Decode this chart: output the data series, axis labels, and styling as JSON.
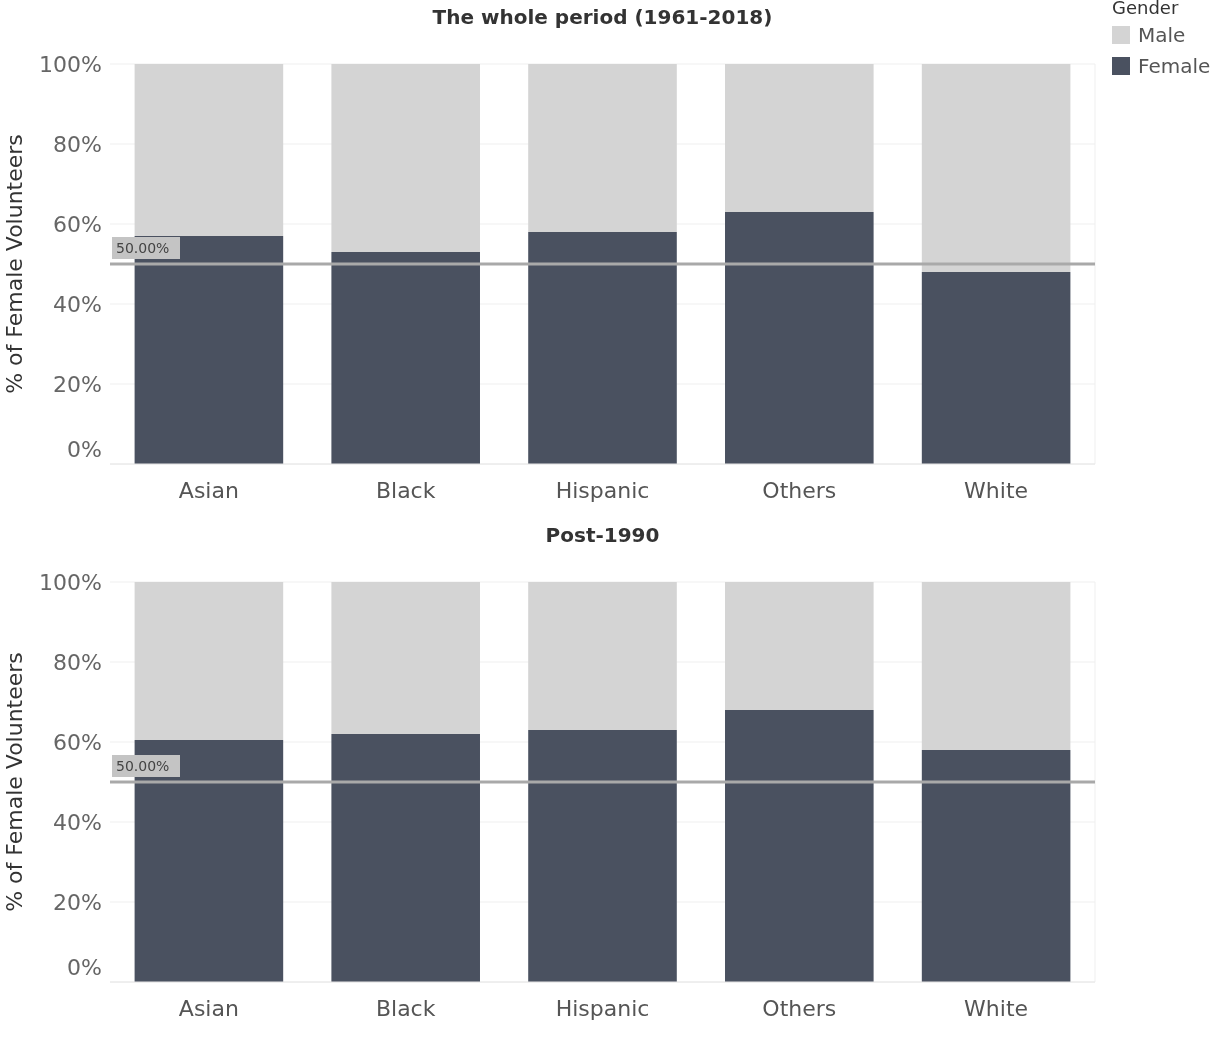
{
  "chart_data": [
    {
      "type": "bar",
      "title": "The whole period (1961-2018)",
      "ylabel": "% of Female Volunteers",
      "categories": [
        "Asian",
        "Black",
        "Hispanic",
        "Others",
        "White"
      ],
      "stacked": true,
      "legend": "top right",
      "legend_title": "Gender",
      "grid": "y",
      "ylim": [
        0,
        100
      ],
      "yticks": [
        {
          "value": 0,
          "label": "0%"
        },
        {
          "value": 20,
          "label": "20%"
        },
        {
          "value": 40,
          "label": "40%"
        },
        {
          "value": 60,
          "label": "60%"
        },
        {
          "value": 80,
          "label": "80%"
        },
        {
          "value": 100,
          "label": "100%"
        }
      ],
      "series": [
        {
          "name": "Female",
          "color": "#4a5160",
          "values": [
            57,
            53,
            58,
            63,
            48
          ]
        },
        {
          "name": "Male",
          "color": "#d4d4d4",
          "values": [
            43,
            47,
            42,
            37,
            52
          ]
        }
      ],
      "ref_lines": [
        {
          "axis": "y",
          "value": 50,
          "label": "50.00%",
          "color": "#a9a9a9"
        }
      ]
    },
    {
      "type": "bar",
      "title": "Post-1990",
      "ylabel": "% of Female Volunteers",
      "categories": [
        "Asian",
        "Black",
        "Hispanic",
        "Others",
        "White"
      ],
      "stacked": true,
      "grid": "y",
      "ylim": [
        0,
        100
      ],
      "yticks": [
        {
          "value": 0,
          "label": "0%"
        },
        {
          "value": 20,
          "label": "20%"
        },
        {
          "value": 40,
          "label": "40%"
        },
        {
          "value": 60,
          "label": "60%"
        },
        {
          "value": 80,
          "label": "80%"
        },
        {
          "value": 100,
          "label": "100%"
        }
      ],
      "series": [
        {
          "color": "#4a5160",
          "values": [
            60.5,
            62,
            63,
            68,
            58
          ]
        },
        {
          "color": "#d4d4d4",
          "values": [
            39.5,
            38,
            37,
            32,
            42
          ]
        }
      ],
      "ref_lines": [
        {
          "axis": "y",
          "value": 50,
          "label": "50.00%",
          "color": "#a9a9a9"
        }
      ]
    }
  ]
}
